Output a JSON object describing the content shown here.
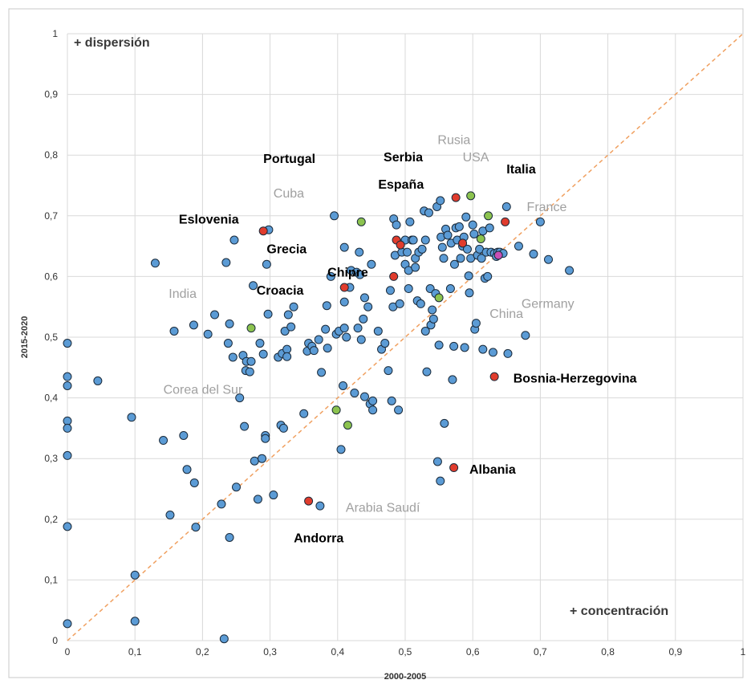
{
  "chart_data": {
    "type": "scatter",
    "xlabel": "2000-2005",
    "ylabel": "2015-2020",
    "xlim": [
      0,
      1
    ],
    "ylim": [
      0,
      1
    ],
    "xticks": [
      "0",
      "0,1",
      "0,2",
      "0,3",
      "0,4",
      "0,5",
      "0,6",
      "0,7",
      "0,8",
      "0,9",
      "1"
    ],
    "yticks": [
      "0",
      "0,1",
      "0,2",
      "0,3",
      "0,4",
      "0,5",
      "0,6",
      "0,7",
      "0,8",
      "0,9",
      "1"
    ],
    "grid": true,
    "reference_line": {
      "from": [
        0,
        0
      ],
      "to": [
        1,
        1
      ],
      "style": "dashed",
      "color": "#f0a060"
    },
    "corner_notes": {
      "top_left": "+ dispersión",
      "bottom_right": "+ concentración"
    },
    "colors": {
      "blue": "#5b9bd5",
      "red": "#e03c2d",
      "green": "#8cc34f",
      "magenta": "#c84fb4",
      "outline": "#1a2a3a",
      "grid": "#d9d9d9"
    },
    "points": {
      "blue": [
        [
          0,
          0.49
        ],
        [
          0,
          0.435
        ],
        [
          0,
          0.42
        ],
        [
          0,
          0.362
        ],
        [
          0,
          0.35
        ],
        [
          0,
          0.305
        ],
        [
          0,
          0.188
        ],
        [
          0,
          0.028
        ],
        [
          0.045,
          0.428
        ],
        [
          0.095,
          0.368
        ],
        [
          0.1,
          0.108
        ],
        [
          0.1,
          0.032
        ],
        [
          0.13,
          0.622
        ],
        [
          0.142,
          0.33
        ],
        [
          0.152,
          0.207
        ],
        [
          0.158,
          0.51
        ],
        [
          0.172,
          0.338
        ],
        [
          0.177,
          0.282
        ],
        [
          0.187,
          0.52
        ],
        [
          0.188,
          0.26
        ],
        [
          0.19,
          0.187
        ],
        [
          0.208,
          0.505
        ],
        [
          0.218,
          0.537
        ],
        [
          0.228,
          0.225
        ],
        [
          0.232,
          0.003
        ],
        [
          0.235,
          0.623
        ],
        [
          0.238,
          0.49
        ],
        [
          0.24,
          0.17
        ],
        [
          0.24,
          0.522
        ],
        [
          0.245,
          0.467
        ],
        [
          0.247,
          0.66
        ],
        [
          0.25,
          0.253
        ],
        [
          0.255,
          0.4
        ],
        [
          0.26,
          0.47
        ],
        [
          0.262,
          0.353
        ],
        [
          0.264,
          0.445
        ],
        [
          0.265,
          0.46
        ],
        [
          0.27,
          0.443
        ],
        [
          0.272,
          0.46
        ],
        [
          0.275,
          0.585
        ],
        [
          0.277,
          0.296
        ],
        [
          0.282,
          0.233
        ],
        [
          0.285,
          0.49
        ],
        [
          0.288,
          0.3
        ],
        [
          0.29,
          0.472
        ],
        [
          0.293,
          0.338
        ],
        [
          0.293,
          0.333
        ],
        [
          0.295,
          0.62
        ],
        [
          0.297,
          0.538
        ],
        [
          0.298,
          0.677
        ],
        [
          0.305,
          0.24
        ],
        [
          0.312,
          0.467
        ],
        [
          0.316,
          0.355
        ],
        [
          0.318,
          0.473
        ],
        [
          0.32,
          0.35
        ],
        [
          0.322,
          0.51
        ],
        [
          0.325,
          0.48
        ],
        [
          0.325,
          0.468
        ],
        [
          0.327,
          0.537
        ],
        [
          0.331,
          0.517
        ],
        [
          0.335,
          0.55
        ],
        [
          0.35,
          0.374
        ],
        [
          0.355,
          0.477
        ],
        [
          0.357,
          0.49
        ],
        [
          0.362,
          0.485
        ],
        [
          0.365,
          0.478
        ],
        [
          0.372,
          0.496
        ],
        [
          0.374,
          0.222
        ],
        [
          0.376,
          0.442
        ],
        [
          0.382,
          0.513
        ],
        [
          0.384,
          0.552
        ],
        [
          0.385,
          0.482
        ],
        [
          0.39,
          0.6
        ],
        [
          0.395,
          0.7
        ],
        [
          0.398,
          0.505
        ],
        [
          0.402,
          0.51
        ],
        [
          0.405,
          0.315
        ],
        [
          0.408,
          0.42
        ],
        [
          0.41,
          0.515
        ],
        [
          0.41,
          0.648
        ],
        [
          0.41,
          0.558
        ],
        [
          0.413,
          0.5
        ],
        [
          0.418,
          0.582
        ],
        [
          0.42,
          0.61
        ],
        [
          0.425,
          0.408
        ],
        [
          0.428,
          0.607
        ],
        [
          0.43,
          0.515
        ],
        [
          0.432,
          0.64
        ],
        [
          0.433,
          0.603
        ],
        [
          0.435,
          0.496
        ],
        [
          0.438,
          0.53
        ],
        [
          0.44,
          0.402
        ],
        [
          0.44,
          0.565
        ],
        [
          0.445,
          0.55
        ],
        [
          0.448,
          0.39
        ],
        [
          0.45,
          0.62
        ],
        [
          0.452,
          0.38
        ],
        [
          0.452,
          0.395
        ],
        [
          0.46,
          0.51
        ],
        [
          0.465,
          0.48
        ],
        [
          0.47,
          0.49
        ],
        [
          0.475,
          0.445
        ],
        [
          0.478,
          0.577
        ],
        [
          0.48,
          0.395
        ],
        [
          0.482,
          0.55
        ],
        [
          0.483,
          0.695
        ],
        [
          0.485,
          0.635
        ],
        [
          0.487,
          0.685
        ],
        [
          0.49,
          0.38
        ],
        [
          0.492,
          0.555
        ],
        [
          0.495,
          0.64
        ],
        [
          0.5,
          0.62
        ],
        [
          0.5,
          0.66
        ],
        [
          0.503,
          0.64
        ],
        [
          0.505,
          0.58
        ],
        [
          0.505,
          0.61
        ],
        [
          0.507,
          0.69
        ],
        [
          0.51,
          0.66
        ],
        [
          0.512,
          0.66
        ],
        [
          0.515,
          0.63
        ],
        [
          0.515,
          0.615
        ],
        [
          0.518,
          0.56
        ],
        [
          0.52,
          0.64
        ],
        [
          0.523,
          0.555
        ],
        [
          0.525,
          0.645
        ],
        [
          0.528,
          0.708
        ],
        [
          0.53,
          0.66
        ],
        [
          0.53,
          0.51
        ],
        [
          0.532,
          0.443
        ],
        [
          0.535,
          0.705
        ],
        [
          0.537,
          0.58
        ],
        [
          0.538,
          0.52
        ],
        [
          0.54,
          0.545
        ],
        [
          0.542,
          0.53
        ],
        [
          0.545,
          0.572
        ],
        [
          0.547,
          0.715
        ],
        [
          0.548,
          0.295
        ],
        [
          0.55,
          0.487
        ],
        [
          0.552,
          0.725
        ],
        [
          0.552,
          0.263
        ],
        [
          0.553,
          0.665
        ],
        [
          0.555,
          0.648
        ],
        [
          0.557,
          0.63
        ],
        [
          0.558,
          0.358
        ],
        [
          0.56,
          0.678
        ],
        [
          0.563,
          0.668
        ],
        [
          0.567,
          0.58
        ],
        [
          0.568,
          0.655
        ],
        [
          0.57,
          0.43
        ],
        [
          0.572,
          0.485
        ],
        [
          0.573,
          0.62
        ],
        [
          0.575,
          0.68
        ],
        [
          0.577,
          0.66
        ],
        [
          0.58,
          0.682
        ],
        [
          0.582,
          0.63
        ],
        [
          0.585,
          0.65
        ],
        [
          0.587,
          0.665
        ],
        [
          0.588,
          0.483
        ],
        [
          0.59,
          0.698
        ],
        [
          0.592,
          0.645
        ],
        [
          0.594,
          0.601
        ],
        [
          0.595,
          0.573
        ],
        [
          0.597,
          0.63
        ],
        [
          0.6,
          0.685
        ],
        [
          0.602,
          0.67
        ],
        [
          0.603,
          0.513
        ],
        [
          0.605,
          0.523
        ],
        [
          0.607,
          0.635
        ],
        [
          0.61,
          0.645
        ],
        [
          0.613,
          0.63
        ],
        [
          0.615,
          0.48
        ],
        [
          0.615,
          0.675
        ],
        [
          0.618,
          0.597
        ],
        [
          0.62,
          0.64
        ],
        [
          0.622,
          0.6
        ],
        [
          0.625,
          0.68
        ],
        [
          0.627,
          0.64
        ],
        [
          0.63,
          0.475
        ],
        [
          0.632,
          0.638
        ],
        [
          0.635,
          0.633
        ],
        [
          0.637,
          0.64
        ],
        [
          0.64,
          0.64
        ],
        [
          0.645,
          0.638
        ],
        [
          0.65,
          0.715
        ],
        [
          0.652,
          0.473
        ],
        [
          0.668,
          0.65
        ],
        [
          0.678,
          0.503
        ],
        [
          0.69,
          0.637
        ],
        [
          0.7,
          0.69
        ],
        [
          0.712,
          0.628
        ],
        [
          0.743,
          0.61
        ]
      ],
      "red": [
        [
          0.29,
          0.675
        ],
        [
          0.357,
          0.23
        ],
        [
          0.41,
          0.582
        ],
        [
          0.483,
          0.6
        ],
        [
          0.487,
          0.66
        ],
        [
          0.493,
          0.652
        ],
        [
          0.572,
          0.285
        ],
        [
          0.575,
          0.73
        ],
        [
          0.585,
          0.655
        ],
        [
          0.632,
          0.435
        ],
        [
          0.648,
          0.69
        ]
      ],
      "green": [
        [
          0.272,
          0.515
        ],
        [
          0.398,
          0.38
        ],
        [
          0.415,
          0.355
        ],
        [
          0.435,
          0.69
        ],
        [
          0.55,
          0.565
        ],
        [
          0.597,
          0.733
        ],
        [
          0.612,
          0.662
        ],
        [
          0.623,
          0.7
        ]
      ],
      "magenta": [
        [
          0.638,
          0.635
        ]
      ]
    },
    "annotations": {
      "portugal": {
        "text": "Portugal",
        "style": "bold",
        "x": 0.29,
        "y": 0.787
      },
      "serbia": {
        "text": "Serbia",
        "style": "bold",
        "x": 0.468,
        "y": 0.79
      },
      "rusia": {
        "text": "Rusia",
        "style": "gray",
        "x": 0.548,
        "y": 0.818
      },
      "usa": {
        "text": "USA",
        "style": "gray",
        "x": 0.585,
        "y": 0.79
      },
      "italia": {
        "text": "Italia",
        "style": "bold",
        "x": 0.65,
        "y": 0.77
      },
      "espana": {
        "text": "España",
        "style": "bold",
        "x": 0.46,
        "y": 0.745
      },
      "cuba": {
        "text": "Cuba",
        "style": "gray",
        "x": 0.305,
        "y": 0.73
      },
      "france": {
        "text": "France",
        "style": "gray",
        "x": 0.68,
        "y": 0.708
      },
      "eslovenia": {
        "text": "Eslovenia",
        "style": "bold",
        "x": 0.165,
        "y": 0.687
      },
      "grecia": {
        "text": "Grecia",
        "style": "bold",
        "x": 0.295,
        "y": 0.638
      },
      "chipre": {
        "text": "Chipre",
        "style": "bold",
        "x": 0.385,
        "y": 0.6
      },
      "croacia": {
        "text": "Croacia",
        "style": "bold",
        "x": 0.28,
        "y": 0.57
      },
      "india": {
        "text": "India",
        "style": "gray",
        "x": 0.15,
        "y": 0.565
      },
      "germany": {
        "text": "Germany",
        "style": "gray",
        "x": 0.672,
        "y": 0.548
      },
      "china": {
        "text": "China",
        "style": "gray",
        "x": 0.625,
        "y": 0.532
      },
      "bosnia": {
        "text": "Bosnia-Herzegovina",
        "style": "bold",
        "x": 0.66,
        "y": 0.425
      },
      "corea": {
        "text": "Corea del Sur",
        "style": "gray",
        "x": 0.142,
        "y": 0.407
      },
      "albania": {
        "text": "Albania",
        "style": "bold",
        "x": 0.595,
        "y": 0.275
      },
      "arabia": {
        "text": "Arabia Saudí",
        "style": "gray",
        "x": 0.412,
        "y": 0.212
      },
      "andorra": {
        "text": "Andorra",
        "style": "bold",
        "x": 0.335,
        "y": 0.162
      }
    }
  }
}
